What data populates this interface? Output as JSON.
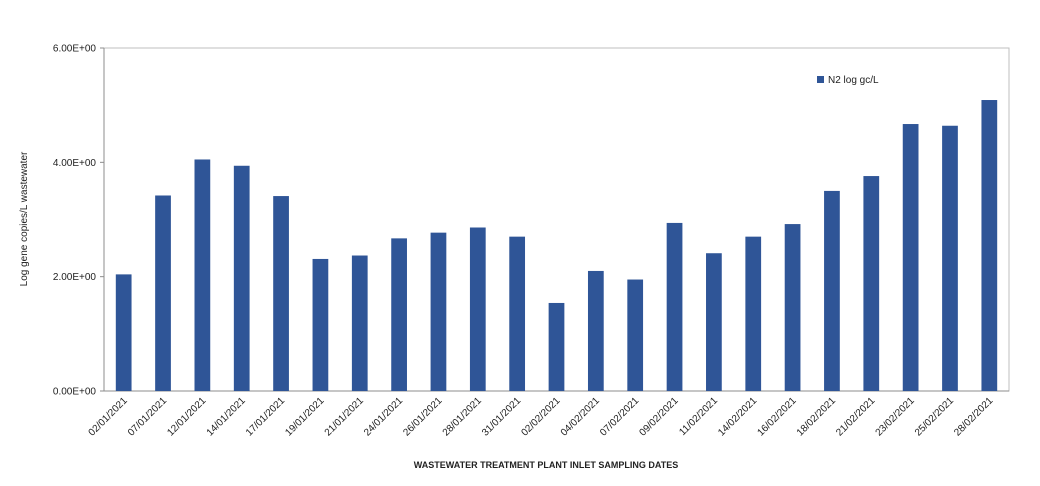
{
  "chart_data": {
    "type": "bar",
    "title": "",
    "xlabel": "WASTEWATER TREATMENT PLANT INLET SAMPLING DATES",
    "ylabel": "Log gene copies/L wastewater",
    "ylim": [
      0,
      6
    ],
    "yticks": [
      0,
      2,
      4,
      6
    ],
    "ytick_labels": [
      "0.00E+00",
      "2.00E+00",
      "4.00E+00",
      "6.00E+00"
    ],
    "grid": false,
    "legend_position": "top-right",
    "categories": [
      "02/01/2021",
      "07/01/2021",
      "12/01/2021",
      "14/01/2021",
      "17/01/2021",
      "19/01/2021",
      "21/01/2021",
      "24/01/2021",
      "26/01/2021",
      "28/01/2021",
      "31/01/2021",
      "02/02/2021",
      "04/02/2021",
      "07/02/2021",
      "09/02/2021",
      "11/02/2021",
      "14/02/2021",
      "16/02/2021",
      "18/02/2021",
      "21/02/2021",
      "23/02/2021",
      "25/02/2021",
      "28/02/2021"
    ],
    "series": [
      {
        "name": "N2 log gc/L",
        "color": "#2F5597",
        "values": [
          2.04,
          3.42,
          4.05,
          3.94,
          3.41,
          2.31,
          2.37,
          2.67,
          2.77,
          2.86,
          2.7,
          1.54,
          2.1,
          1.95,
          2.94,
          2.41,
          2.7,
          2.92,
          3.5,
          3.76,
          4.67,
          4.64,
          5.09
        ]
      }
    ]
  }
}
